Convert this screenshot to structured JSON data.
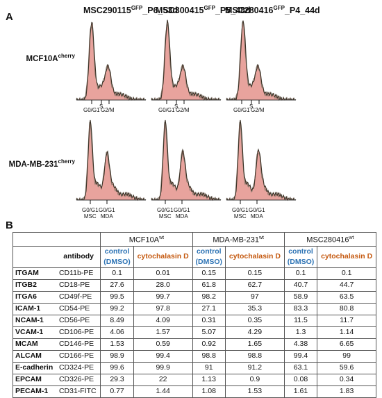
{
  "figure": {
    "panelA": "A",
    "panelB": "B",
    "columns": [
      {
        "base": "MSC290115",
        "sup": "GFP",
        "rest": "_P6_53d"
      },
      {
        "base": "MSC300415",
        "sup": "GFP",
        "rest": "_P5_48d"
      },
      {
        "base": "MSC280416",
        "sup": "GFP",
        "rest": "_P4_44d"
      }
    ],
    "rows": [
      {
        "base": "MCF10A",
        "sup": "cherry"
      },
      {
        "base": "MDA-MB-231",
        "sup": "cherry"
      }
    ],
    "tick_labels_top": [
      "G0/G1",
      "S",
      "G2/M"
    ],
    "tick_labels_bottom": [
      "G0/G1",
      "G0/G1"
    ],
    "tick_sub_bottom": [
      "MSC",
      "MDA"
    ],
    "colors": {
      "fill": "#e8a39d",
      "line_dark": "#3a3226",
      "line_light": "#8c7a6e",
      "blue": "#2e74b5",
      "orange": "#c55a11"
    }
  },
  "table": {
    "antibody_header": "antibody",
    "groups": [
      {
        "base": "MCF10A",
        "sup": "wt"
      },
      {
        "base": "MDA-MB-231",
        "sup": "wt"
      },
      {
        "base": "MSC280416",
        "sup": "wt"
      }
    ],
    "control_label_1": "control",
    "control_label_2": "(DMSO)",
    "cyto_label": "cytochalasin D",
    "rows": [
      {
        "marker": "ITGAM",
        "antibody": "CD11b-PE",
        "v": [
          "0.1",
          "0.01",
          "0.15",
          "0.15",
          "0.1",
          "0.1"
        ]
      },
      {
        "marker": "ITGB2",
        "antibody": "CD18-PE",
        "v": [
          "27.6",
          "28.0",
          "61.8",
          "62.7",
          "40.7",
          "44.7"
        ]
      },
      {
        "marker": "ITGA6",
        "antibody": "CD49f-PE",
        "v": [
          "99.5",
          "99.7",
          "98.2",
          "97",
          "58.9",
          "63.5"
        ]
      },
      {
        "marker": "ICAM-1",
        "antibody": "CD54-PE",
        "v": [
          "99.2",
          "97.8",
          "27.1",
          "35.3",
          "83.3",
          "80.8"
        ]
      },
      {
        "marker": "NCAM-1",
        "antibody": "CD56-PE",
        "v": [
          "8.49",
          "4.09",
          "0.31",
          "0.35",
          "11.5",
          "11.7"
        ]
      },
      {
        "marker": "VCAM-1",
        "antibody": "CD106-PE",
        "v": [
          "4.06",
          "1.57",
          "5.07",
          "4.29",
          "1.3",
          "1.14"
        ]
      },
      {
        "marker": "MCAM",
        "antibody": "CD146-PE",
        "v": [
          "1.53",
          "0.59",
          "0.92",
          "1.65",
          "4.38",
          "6.65"
        ]
      },
      {
        "marker": "ALCAM",
        "antibody": "CD166-PE",
        "v": [
          "98.9",
          "99.4",
          "98.8",
          "98.8",
          "99.4",
          "99"
        ]
      },
      {
        "marker": "E-cadherin",
        "antibody": "CD324-PE",
        "v": [
          "99.6",
          "99.9",
          "91",
          "91.2",
          "63.1",
          "59.6"
        ]
      },
      {
        "marker": "EPCAM",
        "antibody": "CD326-PE",
        "v": [
          "29.3",
          "22",
          "1.13",
          "0.9",
          "0.08",
          "0.34"
        ]
      },
      {
        "marker": "PECAM-1",
        "antibody": "CD31-FITC",
        "v": [
          "0.77",
          "1.44",
          "1.08",
          "1.53",
          "1.61",
          "1.83"
        ]
      }
    ]
  }
}
